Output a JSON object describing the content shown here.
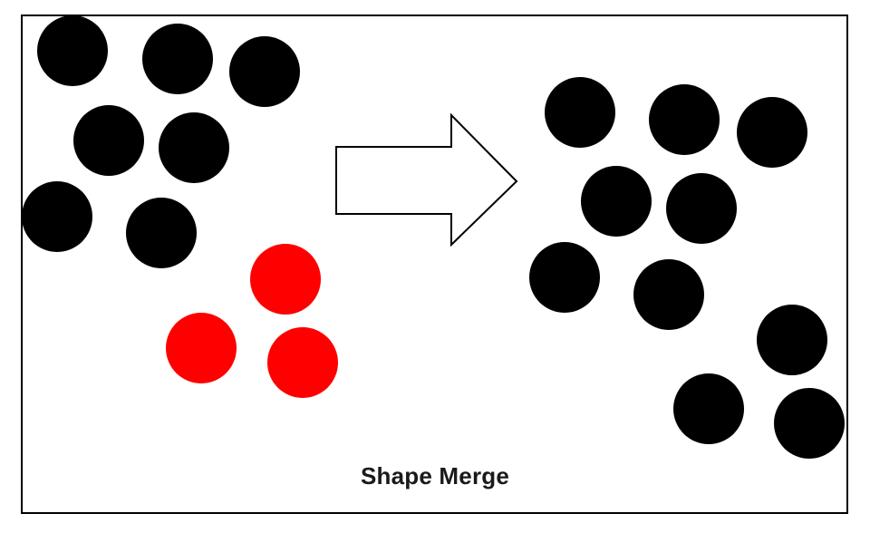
{
  "caption": "Shape Merge",
  "colors": {
    "frame_border": "#000000",
    "background": "#ffffff",
    "existing_shape": "#000000",
    "merged_shape": "#ff0000",
    "arrow_fill": "#ffffff",
    "arrow_stroke": "#000000"
  },
  "before": {
    "black_circle_count": 7,
    "red_circle_count": 3
  },
  "after": {
    "black_circle_count": 10
  },
  "arrow_direction": "right"
}
